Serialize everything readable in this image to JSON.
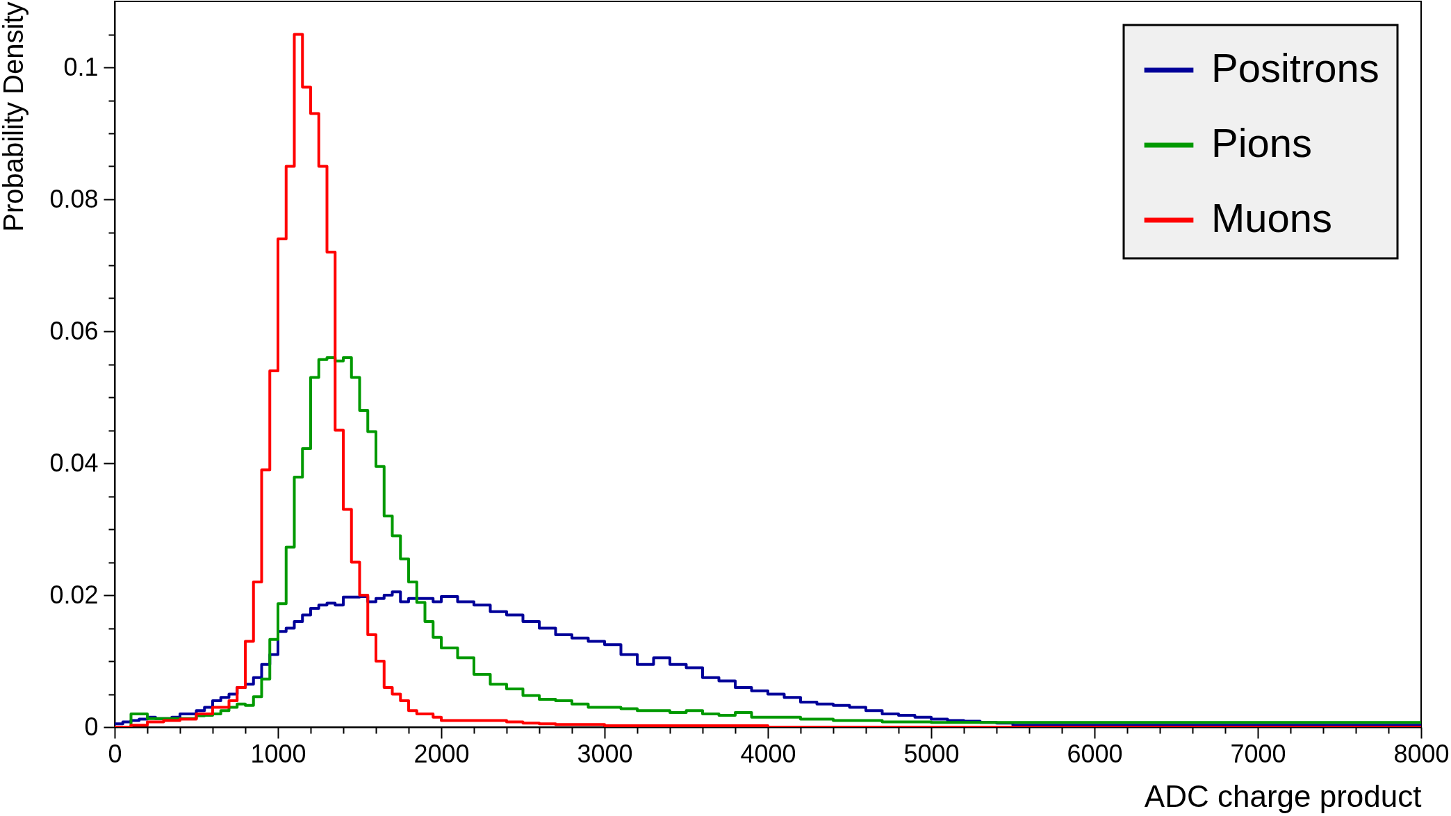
{
  "chart_data": {
    "type": "step",
    "xlabel": "ADC charge product",
    "ylabel": "Probability Density",
    "legend": "top right",
    "grid": false,
    "xlim": [
      0,
      8000
    ],
    "ylim": [
      0,
      0.11
    ],
    "xticks": [
      0,
      {
        "value": 200,
        "label": null
      },
      {
        "value": 400,
        "label": null
      },
      {
        "value": 600,
        "label": null
      },
      {
        "value": 800,
        "label": null
      },
      1000,
      {
        "value": 1200,
        "label": null
      },
      {
        "value": 1400,
        "label": null
      },
      {
        "value": 1600,
        "label": null
      },
      {
        "value": 1800,
        "label": null
      },
      2000,
      {
        "value": 2200,
        "label": null
      },
      {
        "value": 2400,
        "label": null
      },
      {
        "value": 2600,
        "label": null
      },
      {
        "value": 2800,
        "label": null
      },
      3000,
      {
        "value": 3200,
        "label": null
      },
      {
        "value": 3400,
        "label": null
      },
      {
        "value": 3600,
        "label": null
      },
      {
        "value": 3800,
        "label": null
      },
      4000,
      {
        "value": 4200,
        "label": null
      },
      {
        "value": 4400,
        "label": null
      },
      {
        "value": 4600,
        "label": null
      },
      {
        "value": 4800,
        "label": null
      },
      5000,
      {
        "value": 5200,
        "label": null
      },
      {
        "value": 5400,
        "label": null
      },
      {
        "value": 5600,
        "label": null
      },
      {
        "value": 5800,
        "label": null
      },
      6000,
      {
        "value": 6200,
        "label": null
      },
      {
        "value": 6400,
        "label": null
      },
      {
        "value": 6600,
        "label": null
      },
      {
        "value": 6800,
        "label": null
      },
      7000,
      {
        "value": 7200,
        "label": null
      },
      {
        "value": 7400,
        "label": null
      },
      {
        "value": 7600,
        "label": null
      },
      {
        "value": 7800,
        "label": null
      },
      8000
    ],
    "yticks": [
      0,
      {
        "value": 0.005,
        "label": null
      },
      {
        "value": 0.01,
        "label": null
      },
      {
        "value": 0.015,
        "label": null
      },
      0.02,
      {
        "value": 0.025,
        "label": null
      },
      {
        "value": 0.03,
        "label": null
      },
      {
        "value": 0.035,
        "label": null
      },
      0.04,
      {
        "value": 0.045,
        "label": null
      },
      {
        "value": 0.05,
        "label": null
      },
      {
        "value": 0.055,
        "label": null
      },
      0.06,
      {
        "value": 0.065,
        "label": null
      },
      {
        "value": 0.07,
        "label": null
      },
      {
        "value": 0.075,
        "label": null
      },
      0.08,
      {
        "value": 0.085,
        "label": null
      },
      {
        "value": 0.09,
        "label": null
      },
      {
        "value": 0.095,
        "label": null
      },
      0.1,
      {
        "value": 0.105,
        "label": null
      }
    ],
    "x": [
      0,
      50,
      100,
      150,
      200,
      250,
      300,
      350,
      400,
      450,
      500,
      550,
      600,
      650,
      700,
      750,
      800,
      850,
      900,
      950,
      1000,
      1050,
      1100,
      1150,
      1200,
      1250,
      1300,
      1350,
      1400,
      1450,
      1500,
      1550,
      1600,
      1650,
      1700,
      1750,
      1800,
      1850,
      1900,
      1950,
      2000,
      2100,
      2200,
      2300,
      2400,
      2500,
      2600,
      2700,
      2800,
      2900,
      3000,
      3100,
      3200,
      3300,
      3400,
      3500,
      3600,
      3700,
      3800,
      3900,
      4000,
      4100,
      4200,
      4300,
      4400,
      4500,
      4600,
      4700,
      4800,
      4900,
      5000,
      5100,
      5200,
      5300,
      5400,
      5500,
      5600,
      5700,
      5800,
      5900,
      6000,
      6100,
      6200,
      6300,
      6400,
      6500,
      6600,
      6700,
      6800,
      6900,
      7000,
      7100,
      7200,
      7300,
      7400,
      7500,
      7600,
      7700,
      7800,
      7900,
      8000
    ],
    "series": [
      {
        "name": "Positrons",
        "color": "#000099",
        "values": [
          0.0005,
          0.0008,
          0.001,
          0.0012,
          0.0015,
          0.0013,
          0.0013,
          0.0015,
          0.002,
          0.002,
          0.0025,
          0.003,
          0.004,
          0.0045,
          0.005,
          0.006,
          0.0065,
          0.0075,
          0.0095,
          0.011,
          0.0145,
          0.015,
          0.016,
          0.017,
          0.018,
          0.0185,
          0.0188,
          0.0185,
          0.0197,
          0.0197,
          0.0198,
          0.019,
          0.0195,
          0.02,
          0.0205,
          0.019,
          0.0195,
          0.0195,
          0.0195,
          0.019,
          0.0198,
          0.019,
          0.0185,
          0.0175,
          0.017,
          0.016,
          0.015,
          0.014,
          0.0135,
          0.013,
          0.0125,
          0.011,
          0.0095,
          0.0105,
          0.0095,
          0.009,
          0.0075,
          0.007,
          0.006,
          0.0055,
          0.005,
          0.0045,
          0.0038,
          0.0035,
          0.0033,
          0.003,
          0.0025,
          0.002,
          0.0018,
          0.0015,
          0.0012,
          0.001,
          0.0009,
          0.0007,
          0.0006,
          0.0003,
          0.0003,
          0.0003,
          0.0003,
          0.0003,
          0.0003,
          0.0003,
          0.0003,
          0.0003,
          0.0003,
          0.0003,
          0.0003,
          0.0003,
          0.0003,
          0.0003,
          0.0003,
          0.0003,
          0.0003,
          0.0003,
          0.0003,
          0.0003,
          0.0003,
          0.0003,
          0.0003,
          0.0003,
          0.0003
        ]
      },
      {
        "name": "Pions",
        "color": "#009900",
        "values": [
          0,
          0,
          0.002,
          0.002,
          0.0013,
          0.0013,
          0.0013,
          0.0013,
          0.0013,
          0.0013,
          0.0017,
          0.0018,
          0.002,
          0.0025,
          0.003,
          0.0035,
          0.0033,
          0.0046,
          0.0073,
          0.0133,
          0.0187,
          0.0273,
          0.0379,
          0.0422,
          0.053,
          0.0557,
          0.056,
          0.0555,
          0.056,
          0.053,
          0.048,
          0.0448,
          0.0395,
          0.032,
          0.029,
          0.0255,
          0.022,
          0.0189,
          0.016,
          0.0136,
          0.012,
          0.0105,
          0.008,
          0.0065,
          0.0058,
          0.0048,
          0.0042,
          0.004,
          0.0035,
          0.003,
          0.003,
          0.0028,
          0.0025,
          0.0025,
          0.0022,
          0.0025,
          0.002,
          0.0018,
          0.0022,
          0.0015,
          0.0015,
          0.0015,
          0.0012,
          0.0012,
          0.001,
          0.001,
          0.001,
          0.0008,
          0.0008,
          0.0008,
          0.0007,
          0.0007,
          0.0007,
          0.0007,
          0.0007,
          0.0007,
          0.0007,
          0.0007,
          0.0007,
          0.0007,
          0.0007,
          0.0007,
          0.0007,
          0.0007,
          0.0007,
          0.0007,
          0.0007,
          0.0007,
          0.0007,
          0.0007,
          0.0007,
          0.0007,
          0.0007,
          0.0007,
          0.0007,
          0.0007,
          0.0007,
          0.0007,
          0.0007,
          0.0007,
          0.0007
        ]
      },
      {
        "name": "Muons",
        "color": "#ff0000",
        "values": [
          0,
          0,
          0.0003,
          0.0003,
          0.0008,
          0.0008,
          0.001,
          0.001,
          0.0012,
          0.0012,
          0.002,
          0.002,
          0.003,
          0.003,
          0.004,
          0.006,
          0.013,
          0.022,
          0.039,
          0.054,
          0.074,
          0.085,
          0.105,
          0.097,
          0.093,
          0.085,
          0.072,
          0.045,
          0.033,
          0.025,
          0.02,
          0.014,
          0.01,
          0.006,
          0.005,
          0.004,
          0.0025,
          0.002,
          0.002,
          0.0015,
          0.001,
          0.001,
          0.001,
          0.001,
          0.0008,
          0.0006,
          0.0005,
          0.0004,
          0.0004,
          0.0004,
          0.0002,
          0.0002,
          0.0002,
          0.0002,
          0.0002,
          0.0002,
          0.0002,
          0.0002,
          0.0002,
          0.0002,
          0,
          0,
          0,
          0,
          0,
          0,
          0,
          0,
          0,
          0,
          0,
          0,
          0,
          0,
          0,
          0,
          0,
          0,
          0,
          0,
          0,
          0,
          0,
          0,
          0,
          0,
          0,
          0,
          0,
          0,
          0,
          0,
          0,
          0,
          0,
          0,
          0,
          0,
          0,
          0,
          0
        ]
      }
    ]
  }
}
